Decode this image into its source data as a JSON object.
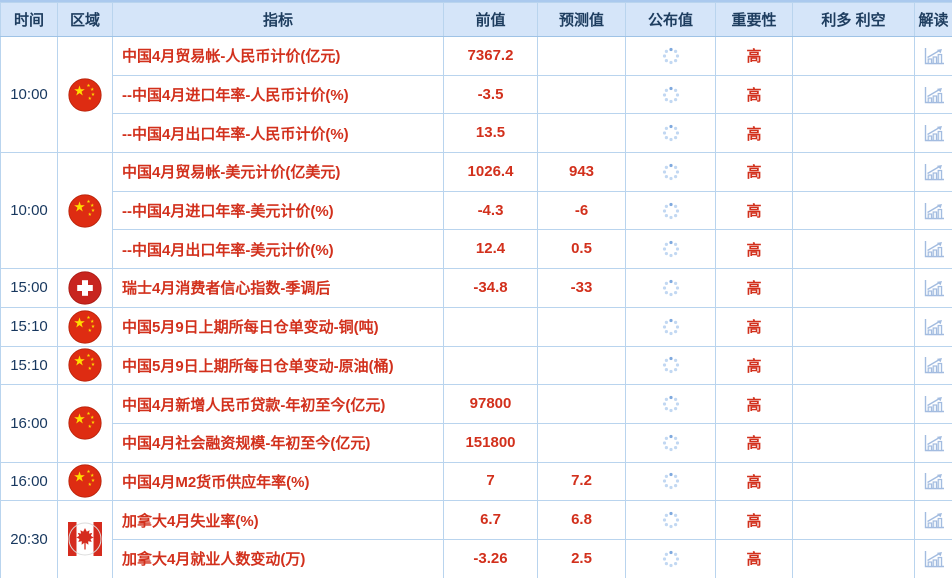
{
  "colors": {
    "accent_red": "#d2301c",
    "header_bg": "#d5e5f9",
    "header_text": "#1e3d5f",
    "time_text": "#17375e",
    "grid_line": "#b9d4ee",
    "group_line": "#a0c3e5",
    "spinner_dot": "#c2d8f2",
    "spinner_dot_active": "#7fa9de",
    "explain_icon": "#a3bce0",
    "flag_china_red": "#de2c12",
    "flag_star_yellow": "#ffde00",
    "flag_swiss_red": "#c8251f",
    "flag_canada_red": "#d52b1e"
  },
  "icons": {
    "published_placeholder": "loading-spinner-icon",
    "explain": "bar-chart-trend-icon"
  },
  "table": {
    "columns": [
      {
        "key": "time",
        "label": "时间"
      },
      {
        "key": "region",
        "label": "区域"
      },
      {
        "key": "indicator",
        "label": "指标"
      },
      {
        "key": "previous",
        "label": "前值"
      },
      {
        "key": "forecast",
        "label": "预测值"
      },
      {
        "key": "published",
        "label": "公布值"
      },
      {
        "key": "importance",
        "label": "重要性"
      },
      {
        "key": "bull_bear",
        "label": "利多 利空"
      },
      {
        "key": "explain",
        "label": "解读"
      }
    ],
    "groups": [
      {
        "time": "10:00",
        "region": "china",
        "rows": [
          {
            "indicator": "中国4月贸易帐-人民币计价(亿元)",
            "previous": "7367.2",
            "forecast": "",
            "importance": "高"
          },
          {
            "indicator": "--中国4月进口年率-人民币计价(%)",
            "previous": "-3.5",
            "forecast": "",
            "importance": "高"
          },
          {
            "indicator": "--中国4月出口年率-人民币计价(%)",
            "previous": "13.5",
            "forecast": "",
            "importance": "高"
          }
        ]
      },
      {
        "time": "10:00",
        "region": "china",
        "rows": [
          {
            "indicator": "中国4月贸易帐-美元计价(亿美元)",
            "previous": "1026.4",
            "forecast": "943",
            "importance": "高"
          },
          {
            "indicator": "--中国4月进口年率-美元计价(%)",
            "previous": "-4.3",
            "forecast": "-6",
            "importance": "高"
          },
          {
            "indicator": "--中国4月出口年率-美元计价(%)",
            "previous": "12.4",
            "forecast": "0.5",
            "importance": "高"
          }
        ]
      },
      {
        "time": "15:00",
        "region": "switzerland",
        "rows": [
          {
            "indicator": "瑞士4月消费者信心指数-季调后",
            "previous": "-34.8",
            "forecast": "-33",
            "importance": "高"
          }
        ]
      },
      {
        "time": "15:10",
        "region": "china",
        "rows": [
          {
            "indicator": "中国5月9日上期所每日仓单变动-铜(吨)",
            "previous": "",
            "forecast": "",
            "importance": "高"
          }
        ]
      },
      {
        "time": "15:10",
        "region": "china",
        "rows": [
          {
            "indicator": "中国5月9日上期所每日仓单变动-原油(桶)",
            "previous": "",
            "forecast": "",
            "importance": "高"
          }
        ]
      },
      {
        "time": "16:00",
        "region": "china",
        "rows": [
          {
            "indicator": "中国4月新增人民币贷款-年初至今(亿元)",
            "previous": "97800",
            "forecast": "",
            "importance": "高"
          },
          {
            "indicator": "中国4月社会融资规模-年初至今(亿元)",
            "previous": "151800",
            "forecast": "",
            "importance": "高"
          }
        ]
      },
      {
        "time": "16:00",
        "region": "china",
        "rows": [
          {
            "indicator": "中国4月M2货币供应年率(%)",
            "previous": "7",
            "forecast": "7.2",
            "importance": "高"
          }
        ]
      },
      {
        "time": "20:30",
        "region": "canada",
        "rows": [
          {
            "indicator": "加拿大4月失业率(%)",
            "previous": "6.7",
            "forecast": "6.8",
            "importance": "高"
          },
          {
            "indicator": "加拿大4月就业人数变动(万)",
            "previous": "-3.26",
            "forecast": "2.5",
            "importance": "高"
          }
        ]
      }
    ]
  }
}
